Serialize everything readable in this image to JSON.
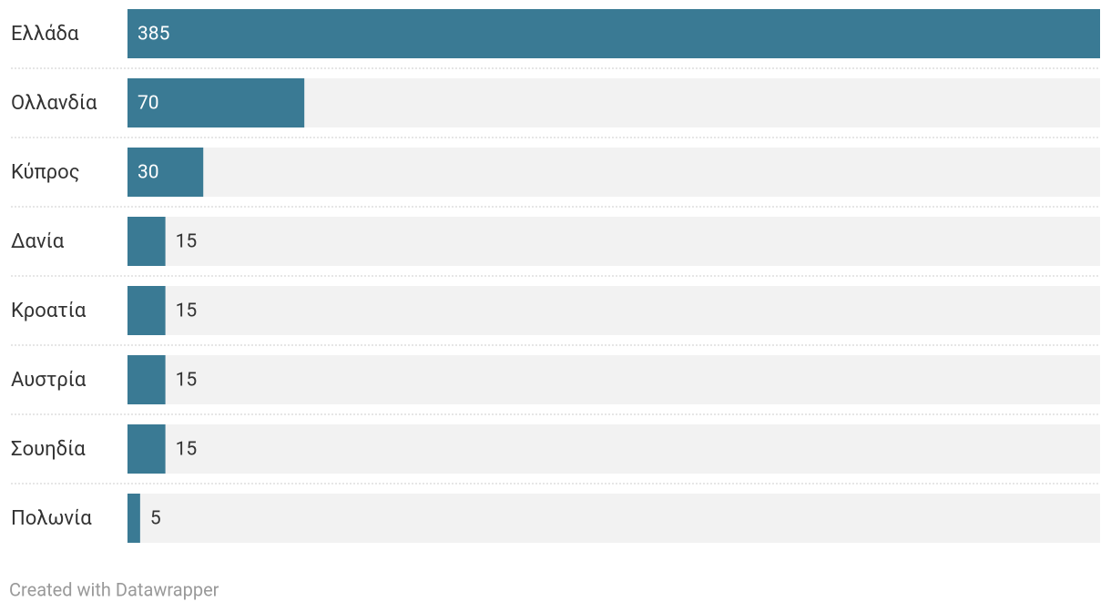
{
  "chart_data": {
    "type": "bar",
    "orientation": "horizontal",
    "categories": [
      "Ελλάδα",
      "Ολλανδία",
      "Κύπρος",
      "Δανία",
      "Κροατία",
      "Αυστρία",
      "Σουηδία",
      "Πολωνία"
    ],
    "values": [
      385,
      70,
      30,
      15,
      15,
      15,
      15,
      5
    ],
    "color": "#3a7a94",
    "credit": "Created with Datawrapper"
  }
}
